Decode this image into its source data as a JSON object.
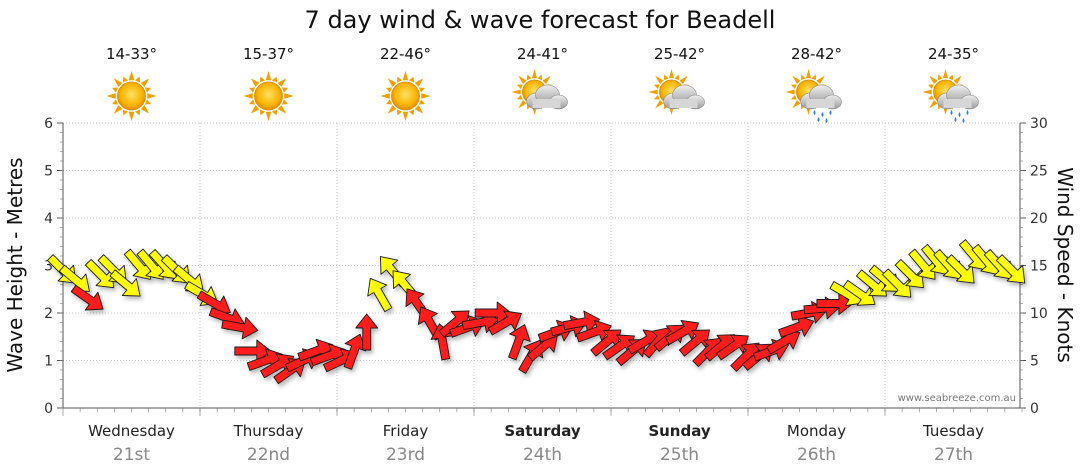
{
  "chart_data": {
    "type": "line",
    "title": "7 day wind & wave forecast for Beadell",
    "ylabel_left": "Wave Height - Metres",
    "ylabel_right": "Wind Speed - Knots",
    "ylim_left": [
      0,
      6
    ],
    "ylim_right": [
      0,
      30
    ],
    "yticks_left": [
      "0",
      "1",
      "2",
      "3",
      "4",
      "5",
      "6"
    ],
    "yticks_right": [
      "0",
      "5",
      "10",
      "15",
      "20",
      "25",
      "30"
    ],
    "grid": true,
    "credit": "www.seabreeze.com.au",
    "days": [
      {
        "day": "Wednesday",
        "date": "21st",
        "temp": "14-33°",
        "icon": "sun-icon",
        "bold": false
      },
      {
        "day": "Thursday",
        "date": "22nd",
        "temp": "15-37°",
        "icon": "sun-icon",
        "bold": false
      },
      {
        "day": "Friday",
        "date": "23rd",
        "temp": "22-46°",
        "icon": "sun-icon",
        "bold": false
      },
      {
        "day": "Saturday",
        "date": "24th",
        "temp": "24-41°",
        "icon": "sun-cloud-icon",
        "bold": true
      },
      {
        "day": "Sunday",
        "date": "25th",
        "temp": "25-42°",
        "icon": "sun-cloud-icon",
        "bold": true
      },
      {
        "day": "Monday",
        "date": "26th",
        "temp": "28-42°",
        "icon": "sun-cloud-rain-icon",
        "bold": false
      },
      {
        "day": "Tuesday",
        "date": "27th",
        "temp": "24-35°",
        "icon": "sun-cloud-rain-icon",
        "bold": false
      }
    ],
    "series": [
      {
        "name": "Wind Speed",
        "x_unit": "hours from start",
        "colors": {
          "moderate": "#ff1a1a",
          "fresh": "#ffff00"
        },
        "color_threshold_knots": 12,
        "points": [
          {
            "t": 0,
            "knots": 14.5,
            "dir": 315
          },
          {
            "t": 3,
            "knots": 13.5,
            "dir": 310
          },
          {
            "t": 6,
            "knots": 11.5,
            "dir": 305
          },
          {
            "t": 9,
            "knots": 14,
            "dir": 315
          },
          {
            "t": 12,
            "knots": 14.5,
            "dir": 315
          },
          {
            "t": 15,
            "knots": 13,
            "dir": 310
          },
          {
            "t": 18,
            "knots": 15,
            "dir": 320
          },
          {
            "t": 21,
            "knots": 15,
            "dir": 320
          },
          {
            "t": 24,
            "knots": 15,
            "dir": 318
          },
          {
            "t": 27,
            "knots": 14.5,
            "dir": 315
          },
          {
            "t": 30,
            "knots": 13.5,
            "dir": 310
          },
          {
            "t": 33,
            "knots": 12,
            "dir": 300
          },
          {
            "t": 36,
            "knots": 11,
            "dir": 300
          },
          {
            "t": 39,
            "knots": 9.5,
            "dir": 290
          },
          {
            "t": 42,
            "knots": 8.5,
            "dir": 280
          },
          {
            "t": 45,
            "knots": 6,
            "dir": 270
          },
          {
            "t": 48,
            "knots": 5,
            "dir": 250
          },
          {
            "t": 51,
            "knots": 4.5,
            "dir": 240
          },
          {
            "t": 54,
            "knots": 4,
            "dir": 235
          },
          {
            "t": 57,
            "knots": 5,
            "dir": 245
          },
          {
            "t": 60,
            "knots": 6,
            "dir": 250
          },
          {
            "t": 63,
            "knots": 5.5,
            "dir": 250
          },
          {
            "t": 66,
            "knots": 5,
            "dir": 245
          },
          {
            "t": 69,
            "knots": 6,
            "dir": 200
          },
          {
            "t": 72,
            "knots": 8,
            "dir": 180
          },
          {
            "t": 75,
            "knots": 12,
            "dir": 150
          },
          {
            "t": 78,
            "knots": 14.5,
            "dir": 140
          },
          {
            "t": 81,
            "knots": 13,
            "dir": 140
          },
          {
            "t": 84,
            "knots": 11,
            "dir": 145
          },
          {
            "t": 87,
            "knots": 9,
            "dir": 150
          },
          {
            "t": 90,
            "knots": 7,
            "dir": 170
          },
          {
            "t": 93,
            "knots": 9,
            "dir": 230
          },
          {
            "t": 96,
            "knots": 8.5,
            "dir": 250
          },
          {
            "t": 99,
            "knots": 9,
            "dir": 260
          },
          {
            "t": 102,
            "knots": 10,
            "dir": 270
          },
          {
            "t": 105,
            "knots": 9,
            "dir": 240
          },
          {
            "t": 108,
            "knots": 7,
            "dir": 200
          },
          {
            "t": 111,
            "knots": 5.5,
            "dir": 210
          },
          {
            "t": 114,
            "knots": 6.5,
            "dir": 230
          },
          {
            "t": 117,
            "knots": 8,
            "dir": 250
          },
          {
            "t": 120,
            "knots": 8.5,
            "dir": 255
          },
          {
            "t": 123,
            "knots": 9,
            "dir": 260
          },
          {
            "t": 126,
            "knots": 8,
            "dir": 250
          },
          {
            "t": 129,
            "knots": 7,
            "dir": 230
          },
          {
            "t": 132,
            "knots": 6.5,
            "dir": 235
          },
          {
            "t": 135,
            "knots": 6,
            "dir": 230
          },
          {
            "t": 138,
            "knots": 7,
            "dir": 240
          },
          {
            "t": 141,
            "knots": 7,
            "dir": 220
          },
          {
            "t": 144,
            "knots": 7.5,
            "dir": 230
          },
          {
            "t": 147,
            "knots": 8,
            "dir": 240
          },
          {
            "t": 150,
            "knots": 7,
            "dir": 230
          },
          {
            "t": 153,
            "knots": 6,
            "dir": 225
          },
          {
            "t": 156,
            "knots": 6.5,
            "dir": 230
          },
          {
            "t": 159,
            "knots": 6.5,
            "dir": 235
          },
          {
            "t": 162,
            "knots": 5.5,
            "dir": 225
          },
          {
            "t": 165,
            "knots": 5.5,
            "dir": 230
          },
          {
            "t": 168,
            "knots": 6,
            "dir": 250
          },
          {
            "t": 171,
            "knots": 7,
            "dir": 240
          },
          {
            "t": 174,
            "knots": 8.5,
            "dir": 250
          },
          {
            "t": 177,
            "knots": 10,
            "dir": 260
          },
          {
            "t": 180,
            "knots": 10.5,
            "dir": 265
          },
          {
            "t": 183,
            "knots": 11,
            "dir": 270
          },
          {
            "t": 186,
            "knots": 12,
            "dir": 300
          },
          {
            "t": 189,
            "knots": 12,
            "dir": 305
          },
          {
            "t": 192,
            "knots": 13,
            "dir": 310
          },
          {
            "t": 195,
            "knots": 13.5,
            "dir": 310
          },
          {
            "t": 198,
            "knots": 13,
            "dir": 315
          },
          {
            "t": 201,
            "knots": 14,
            "dir": 315
          },
          {
            "t": 204,
            "knots": 15,
            "dir": 320
          },
          {
            "t": 207,
            "knots": 15.5,
            "dir": 320
          },
          {
            "t": 210,
            "knots": 15,
            "dir": 318
          },
          {
            "t": 213,
            "knots": 14.5,
            "dir": 315
          },
          {
            "t": 216,
            "knots": 16,
            "dir": 320
          },
          {
            "t": 219,
            "knots": 15.5,
            "dir": 320
          },
          {
            "t": 222,
            "knots": 15,
            "dir": 318
          },
          {
            "t": 225,
            "knots": 14.5,
            "dir": 315
          }
        ]
      }
    ]
  }
}
